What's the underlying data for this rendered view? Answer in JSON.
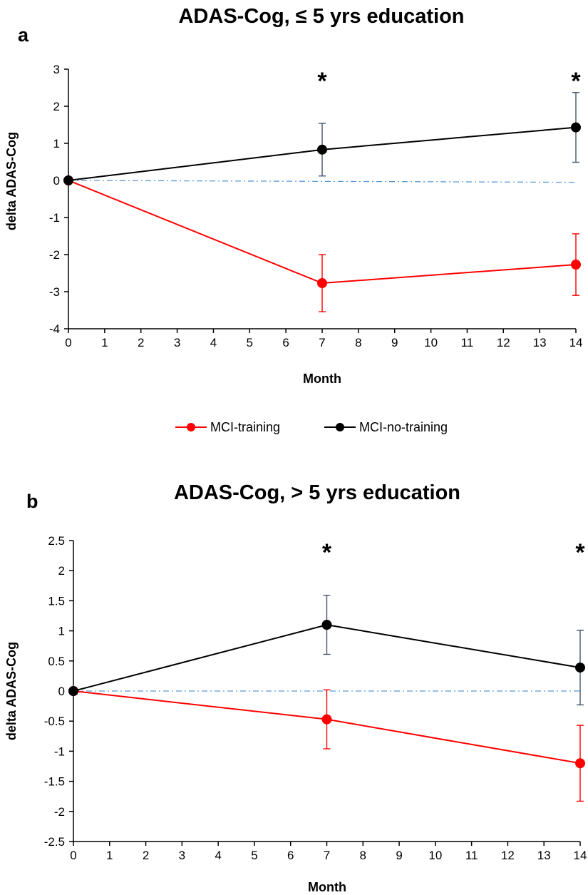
{
  "colors": {
    "training": "#ff0000",
    "no_training": "#000000",
    "no_training_error": "#44546a",
    "baseline": "#5b9bd5"
  },
  "legend": {
    "training": "MCI-training",
    "no_training": "MCI-no-training"
  },
  "chart_data": [
    {
      "panel_label": "a",
      "type": "line",
      "title": "ADAS-Cog, ≤ 5 yrs education",
      "xlabel": "Month",
      "ylabel": "delta ADAS-Cog",
      "xlim": [
        0,
        14
      ],
      "ylim": [
        -4,
        3
      ],
      "xticks": [
        0,
        1,
        2,
        3,
        4,
        5,
        6,
        7,
        8,
        9,
        10,
        11,
        12,
        13,
        14
      ],
      "yticks": [
        -4,
        -3,
        -2,
        -1,
        0,
        1,
        2,
        3
      ],
      "ytick_labels": [
        "-4",
        "-3",
        "-2",
        "-1",
        "0",
        "1",
        "2",
        "3"
      ],
      "significance_markers": [
        {
          "x": 7,
          "label": "*"
        },
        {
          "x": 14,
          "label": "*"
        }
      ],
      "baseline": {
        "style": "dash-dot",
        "from": [
          0,
          0
        ],
        "to": [
          14,
          -0.05
        ]
      },
      "series": [
        {
          "name": "MCI-training",
          "x": [
            0,
            7,
            14
          ],
          "y": [
            0,
            -2.77,
            -2.27
          ],
          "error": [
            0,
            0.77,
            0.83
          ]
        },
        {
          "name": "MCI-no-training",
          "x": [
            0,
            7,
            14
          ],
          "y": [
            0,
            0.83,
            1.43
          ],
          "error": [
            0,
            0.71,
            0.94
          ]
        }
      ]
    },
    {
      "panel_label": "b",
      "type": "line",
      "title": "ADAS-Cog, > 5 yrs education",
      "xlabel": "Month",
      "ylabel": "delta ADAS-Cog",
      "xlim": [
        0,
        14
      ],
      "ylim": [
        -2.5,
        2.5
      ],
      "xticks": [
        0,
        1,
        2,
        3,
        4,
        5,
        6,
        7,
        8,
        9,
        10,
        11,
        12,
        13,
        14
      ],
      "yticks": [
        -2.5,
        -2,
        -1.5,
        -1,
        -0.5,
        0,
        0.5,
        1,
        1.5,
        2,
        2.5
      ],
      "ytick_labels": [
        "-2.5",
        "-2",
        "-1.5",
        "-1",
        "-0.5",
        "0",
        "0.5",
        "1",
        "1.5",
        "2",
        "2.5"
      ],
      "significance_markers": [
        {
          "x": 7,
          "label": "*"
        },
        {
          "x": 14,
          "label": "*"
        }
      ],
      "baseline": {
        "style": "dash-dot",
        "from": [
          0,
          0
        ],
        "to": [
          14,
          0
        ]
      },
      "series": [
        {
          "name": "MCI-training",
          "x": [
            0,
            7,
            14
          ],
          "y": [
            0,
            -0.47,
            -1.2
          ],
          "error": [
            0,
            0.49,
            0.63
          ]
        },
        {
          "name": "MCI-no-training",
          "x": [
            0,
            7,
            14
          ],
          "y": [
            0,
            1.1,
            0.39
          ],
          "error": [
            0,
            0.49,
            0.62
          ]
        }
      ]
    }
  ]
}
